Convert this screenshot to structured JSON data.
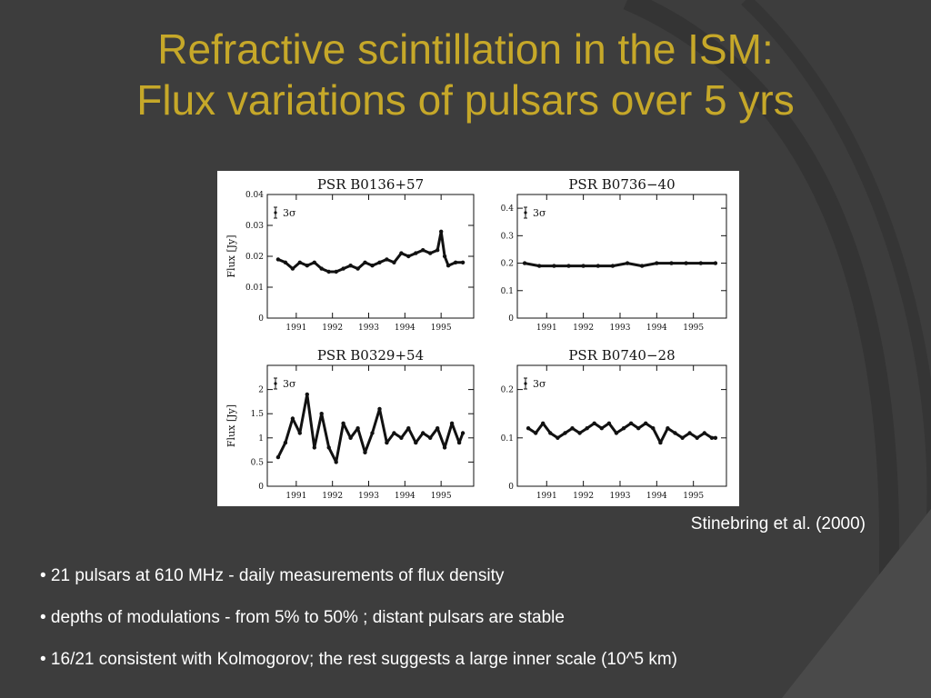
{
  "slide": {
    "title_lines": [
      "Refractive scintillation in the ISM:",
      "Flux variations of pulsars over 5 yrs"
    ],
    "citation": "Stinebring et al. (2000)",
    "bullets": [
      "• 21 pulsars at 610 MHz - daily measurements of flux density",
      "• depths of modulations - from 5% to 50% ; distant pulsars are stable",
      "• 16/21 consistent with Kolmogorov; the rest suggests a large inner scale (10^5 km)"
    ],
    "colors": {
      "background": "#3d3d3d",
      "title": "#c6a829",
      "text": "#ffffff",
      "plot_ink": "#111111"
    }
  },
  "chart_data": [
    {
      "type": "scatter",
      "title": "PSR B0136+57",
      "ylabel": "Flux [Jy]",
      "error_label": "3σ",
      "xlim": [
        1990.2,
        1995.9
      ],
      "xticks": [
        "1991",
        "1992",
        "1993",
        "1994",
        "1995"
      ],
      "ylim": [
        0,
        0.04
      ],
      "yticks": [
        "0",
        "0.01",
        "0.02",
        "0.03",
        "0.04"
      ],
      "series": [
        {
          "x": [
            1990.5,
            1990.7,
            1990.9,
            1991.1,
            1991.3,
            1991.5,
            1991.7,
            1991.9,
            1992.1,
            1992.3,
            1992.5,
            1992.7,
            1992.9,
            1993.1,
            1993.3,
            1993.5,
            1993.7,
            1993.9,
            1994.1,
            1994.3,
            1994.5,
            1994.7,
            1994.9,
            1995.0,
            1995.1,
            1995.2,
            1995.4,
            1995.6
          ],
          "y": [
            0.019,
            0.018,
            0.016,
            0.018,
            0.017,
            0.018,
            0.016,
            0.015,
            0.015,
            0.016,
            0.017,
            0.016,
            0.018,
            0.017,
            0.018,
            0.019,
            0.018,
            0.021,
            0.02,
            0.021,
            0.022,
            0.021,
            0.022,
            0.028,
            0.02,
            0.017,
            0.018,
            0.018
          ]
        }
      ]
    },
    {
      "type": "scatter",
      "title": "PSR B0736−40",
      "ylabel": "",
      "error_label": "3σ",
      "xlim": [
        1990.2,
        1995.9
      ],
      "xticks": [
        "1991",
        "1992",
        "1993",
        "1994",
        "1995"
      ],
      "ylim": [
        0,
        0.45
      ],
      "yticks": [
        "0",
        "0.1",
        "0.2",
        "0.3",
        "0.4"
      ],
      "series": [
        {
          "x": [
            1990.4,
            1990.8,
            1991.2,
            1991.6,
            1992.0,
            1992.4,
            1992.8,
            1993.2,
            1993.6,
            1994.0,
            1994.4,
            1994.8,
            1995.2,
            1995.6
          ],
          "y": [
            0.2,
            0.19,
            0.19,
            0.19,
            0.19,
            0.19,
            0.19,
            0.2,
            0.19,
            0.2,
            0.2,
            0.2,
            0.2,
            0.2
          ]
        }
      ]
    },
    {
      "type": "scatter",
      "title": "PSR B0329+54",
      "ylabel": "Flux [Jy]",
      "error_label": "3σ",
      "xlim": [
        1990.2,
        1995.9
      ],
      "xticks": [
        "1991",
        "1992",
        "1993",
        "1994",
        "1995"
      ],
      "ylim": [
        0,
        2.5
      ],
      "yticks": [
        "0",
        "0.5",
        "1",
        "1.5",
        "2"
      ],
      "series": [
        {
          "x": [
            1990.5,
            1990.7,
            1990.9,
            1991.1,
            1991.3,
            1991.5,
            1991.7,
            1991.9,
            1992.1,
            1992.3,
            1992.5,
            1992.7,
            1992.9,
            1993.1,
            1993.3,
            1993.5,
            1993.7,
            1993.9,
            1994.1,
            1994.3,
            1994.5,
            1994.7,
            1994.9,
            1995.1,
            1995.3,
            1995.5,
            1995.6
          ],
          "y": [
            0.6,
            0.9,
            1.4,
            1.1,
            1.9,
            0.8,
            1.5,
            0.8,
            0.5,
            1.3,
            1.0,
            1.2,
            0.7,
            1.1,
            1.6,
            0.9,
            1.1,
            1.0,
            1.2,
            0.9,
            1.1,
            1.0,
            1.2,
            0.8,
            1.3,
            0.9,
            1.1
          ]
        }
      ]
    },
    {
      "type": "scatter",
      "title": "PSR B0740−28",
      "ylabel": "",
      "error_label": "3σ",
      "xlim": [
        1990.2,
        1995.9
      ],
      "xticks": [
        "1991",
        "1992",
        "1993",
        "1994",
        "1995"
      ],
      "ylim": [
        0,
        0.25
      ],
      "yticks": [
        "0",
        "0.1",
        "0.2"
      ],
      "series": [
        {
          "x": [
            1990.5,
            1990.7,
            1990.9,
            1991.1,
            1991.3,
            1991.5,
            1991.7,
            1991.9,
            1992.1,
            1992.3,
            1992.5,
            1992.7,
            1992.9,
            1993.1,
            1993.3,
            1993.5,
            1993.7,
            1993.9,
            1994.1,
            1994.3,
            1994.5,
            1994.7,
            1994.9,
            1995.1,
            1995.3,
            1995.5,
            1995.6
          ],
          "y": [
            0.12,
            0.11,
            0.13,
            0.11,
            0.1,
            0.11,
            0.12,
            0.11,
            0.12,
            0.13,
            0.12,
            0.13,
            0.11,
            0.12,
            0.13,
            0.12,
            0.13,
            0.12,
            0.09,
            0.12,
            0.11,
            0.1,
            0.11,
            0.1,
            0.11,
            0.1,
            0.1
          ]
        }
      ]
    }
  ]
}
